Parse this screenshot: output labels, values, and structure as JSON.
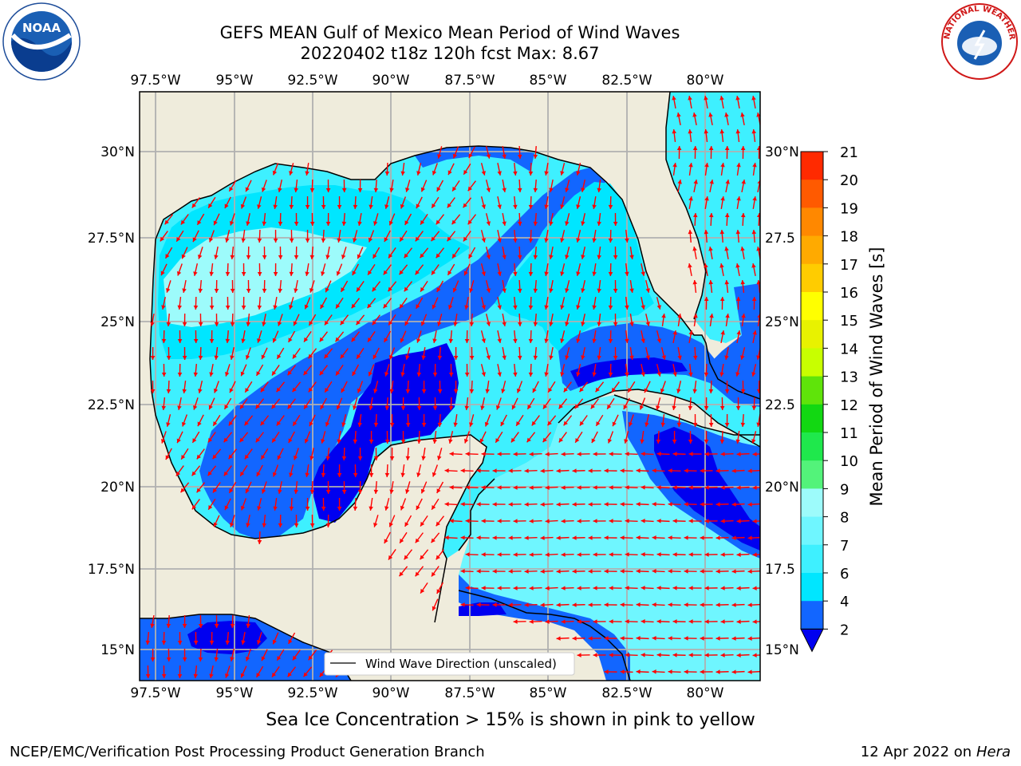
{
  "title": {
    "line1": "GEFS MEAN Gulf of Mexico Mean Period of Wind Waves",
    "line2": "20220402 t18z 120h fcst   Max: 8.67"
  },
  "map": {
    "lon_labels": [
      "97.5°W",
      "95°W",
      "92.5°W",
      "90°W",
      "87.5°W",
      "85°W",
      "82.5°W",
      "80°W"
    ],
    "lat_labels_left": [
      "30°N",
      "27.5°N",
      "25°N",
      "22.5°N",
      "20°N",
      "17.5°N",
      "15°N"
    ],
    "lat_labels_right": [
      "30°N",
      "27.5",
      "25°N",
      "22.5",
      "20°N",
      "17.5",
      "15°N"
    ],
    "legend_label": "Wind Wave Direction (unscaled)"
  },
  "colorbar": {
    "label": "Mean Period of Wind Waves [s]",
    "ticks": [
      "21",
      "20",
      "19",
      "18",
      "17",
      "16",
      "15",
      "14",
      "13",
      "12",
      "11",
      "10",
      "9",
      "8",
      "7",
      "6",
      "4",
      "2"
    ],
    "colors": {
      "2": "#1266ff",
      "4": "#00e6ff",
      "6": "#3ef0ff",
      "7": "#6ff6ff",
      "8": "#9dfbfb",
      "9": "#53f37a",
      "10": "#1fe84c",
      "11": "#12d812",
      "12": "#5fe40a",
      "13": "#c8ff00",
      "14": "#e8f200",
      "15": "#ffff00",
      "16": "#ffcc00",
      "17": "#ffaa00",
      "18": "#ff8800",
      "19": "#ff5a00",
      "20": "#ff2a00",
      "21": "#ff0000",
      "under": "#0000f0"
    }
  },
  "colors": {
    "land": "#efecdc",
    "arrow": "#ff0000",
    "grid": "#b0b0b0"
  },
  "caption": "Sea Ice Concentration > 15% is shown in pink to yellow",
  "footer": {
    "left": "NCEP/EMC/Verification Post Processing Product Generation Branch",
    "right_date": "12 Apr 2022 on ",
    "right_machine": "Hera"
  },
  "logos": {
    "noaa_text": "NOAA",
    "nws_text": "NATIONAL WEATHER SERVICE"
  }
}
